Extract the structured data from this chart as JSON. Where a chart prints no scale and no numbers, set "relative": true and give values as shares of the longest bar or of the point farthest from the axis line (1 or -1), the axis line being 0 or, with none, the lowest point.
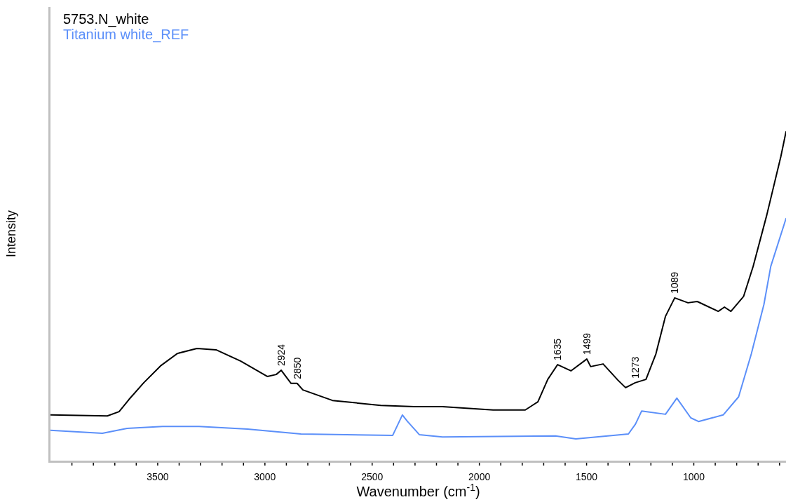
{
  "chart_data": {
    "type": "line",
    "xlabel": "Wavenumber (cm$^{-1}$)",
    "ylabel": "Intensity",
    "relative": true,
    "legend": "top left",
    "grid": false,
    "marker": "none",
    "line_style": "solid",
    "xlim": [
      4000,
      570
    ],
    "xticks": [
      {
        "value": 3900,
        "label": null
      },
      {
        "value": 3800,
        "label": null
      },
      {
        "value": 3700,
        "label": null
      },
      {
        "value": 3600,
        "label": null
      },
      3500,
      {
        "value": 3400,
        "label": null
      },
      {
        "value": 3300,
        "label": null
      },
      {
        "value": 3200,
        "label": null
      },
      {
        "value": 3100,
        "label": null
      },
      3000,
      {
        "value": 2900,
        "label": null
      },
      {
        "value": 2800,
        "label": null
      },
      {
        "value": 2700,
        "label": null
      },
      {
        "value": 2600,
        "label": null
      },
      2500,
      {
        "value": 2400,
        "label": null
      },
      {
        "value": 2300,
        "label": null
      },
      {
        "value": 2200,
        "label": null
      },
      {
        "value": 2100,
        "label": null
      },
      2000,
      {
        "value": 1900,
        "label": null
      },
      {
        "value": 1800,
        "label": null
      },
      {
        "value": 1700,
        "label": null
      },
      {
        "value": 1600,
        "label": null
      },
      1500,
      {
        "value": 1400,
        "label": null
      },
      {
        "value": 1300,
        "label": null
      },
      {
        "value": 1200,
        "label": null
      },
      {
        "value": 1100,
        "label": null
      },
      1000,
      {
        "value": 900,
        "label": null
      },
      {
        "value": 800,
        "label": null
      },
      {
        "value": 700,
        "label": null
      },
      {
        "value": 600,
        "label": null
      }
    ],
    "series": [
      {
        "name": "5753.N_white",
        "color": "#000000",
        "x": [
          4000,
          3735,
          3680,
          3634,
          3565,
          3487,
          3408,
          3317,
          3228,
          3114,
          2989,
          2947,
          2924,
          2878,
          2850,
          2823,
          2685,
          2460,
          2303,
          2172,
          1936,
          1786,
          1727,
          1681,
          1635,
          1573,
          1499,
          1481,
          1423,
          1354,
          1318,
          1273,
          1223,
          1177,
          1132,
          1089,
          1027,
          984,
          886,
          857,
          827,
          768,
          723,
          660,
          594,
          570
        ],
        "values": [
          0.139,
          0.136,
          0.149,
          0.186,
          0.237,
          0.288,
          0.326,
          0.341,
          0.337,
          0.303,
          0.256,
          0.262,
          0.275,
          0.235,
          0.235,
          0.215,
          0.183,
          0.168,
          0.164,
          0.164,
          0.154,
          0.154,
          0.179,
          0.247,
          0.292,
          0.273,
          0.309,
          0.286,
          0.294,
          0.245,
          0.222,
          0.237,
          0.247,
          0.324,
          0.439,
          0.495,
          0.48,
          0.484,
          0.454,
          0.467,
          0.454,
          0.499,
          0.591,
          0.746,
          0.925,
          1.0
        ]
      },
      {
        "name": "Titanium white_REF",
        "color": "#5b8ff9",
        "x": [
          4000,
          3758,
          3643,
          3477,
          3307,
          3081,
          2832,
          2404,
          2359,
          2335,
          2280,
          2172,
          1645,
          1550,
          1305,
          1272,
          1243,
          1132,
          1079,
          1014,
          978,
          863,
          791,
          732,
          673,
          641,
          570
        ],
        "values": [
          0.092,
          0.083,
          0.098,
          0.104,
          0.104,
          0.096,
          0.081,
          0.077,
          0.139,
          0.119,
          0.079,
          0.072,
          0.075,
          0.066,
          0.081,
          0.111,
          0.151,
          0.141,
          0.19,
          0.13,
          0.119,
          0.139,
          0.194,
          0.324,
          0.475,
          0.591,
          0.736
        ]
      }
    ],
    "annotations": [
      {
        "text": "2924",
        "x": 2924,
        "y": 0.275
      },
      {
        "text": "2850",
        "x": 2850,
        "y": 0.235
      },
      {
        "text": "1635",
        "x": 1635,
        "y": 0.292
      },
      {
        "text": "1499",
        "x": 1499,
        "y": 0.309
      },
      {
        "text": "1273",
        "x": 1273,
        "y": 0.237
      },
      {
        "text": "1089",
        "x": 1089,
        "y": 0.495
      }
    ]
  }
}
